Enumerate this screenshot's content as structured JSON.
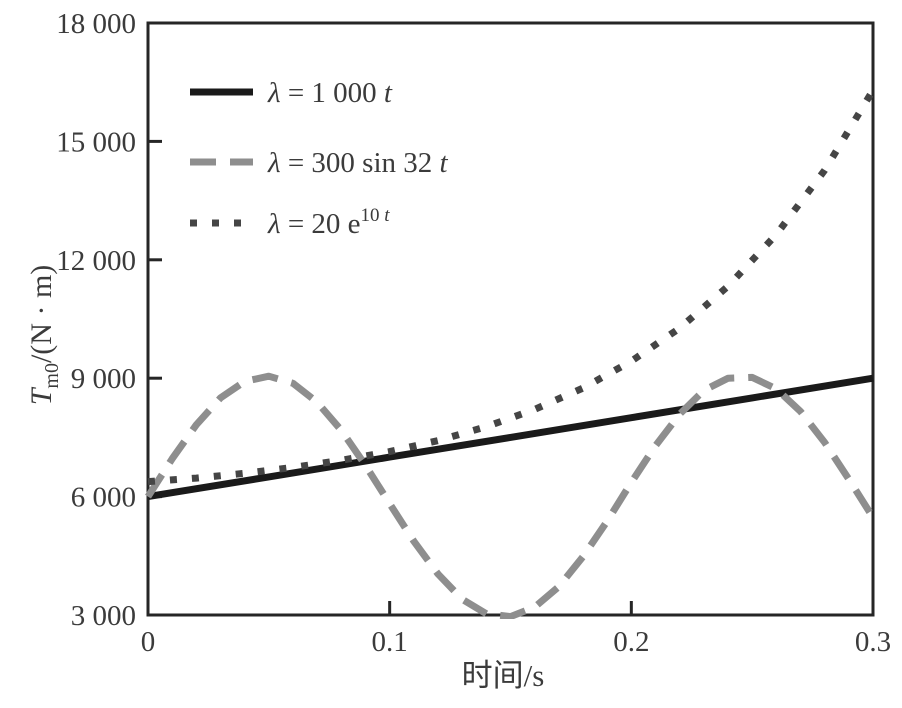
{
  "figure": {
    "background": "#ffffff",
    "axis_color": "#262626",
    "text_color": "#3b3b3b"
  },
  "y_axis": {
    "label": {
      "main": "T",
      "sub": "m0",
      "rest": "/(N · m)"
    },
    "ticks": [
      3000,
      6000,
      9000,
      12000,
      15000,
      18000
    ],
    "tick_labels": [
      "3 000",
      "6 000",
      "9 000",
      "12 000",
      "15 000",
      "18 000"
    ],
    "inner_tick_values": [
      6000,
      9000,
      12000,
      15000
    ]
  },
  "x_axis": {
    "label": "时间/s",
    "ticks": [
      0,
      0.1,
      0.2,
      0.3
    ],
    "tick_labels": [
      "0",
      "0.1",
      "0.2",
      "0.3"
    ],
    "inner_tick_values": [
      0.1,
      0.2
    ]
  },
  "legend": {
    "items": [
      {
        "parts": [
          {
            "text": "λ",
            "italic": true
          },
          {
            "text": " = 1 000 ",
            "italic": false
          },
          {
            "text": "t",
            "italic": true
          }
        ]
      },
      {
        "parts": [
          {
            "text": "λ",
            "italic": true
          },
          {
            "text": " = 300 sin 32 ",
            "italic": false
          },
          {
            "text": "t",
            "italic": true
          }
        ]
      },
      {
        "parts": [
          {
            "text": "λ",
            "italic": true
          },
          {
            "text": " = 20 e",
            "italic": false
          },
          {
            "text": "10 ",
            "italic": false,
            "sup": true
          },
          {
            "text": "t",
            "italic": true,
            "sup": true
          }
        ]
      }
    ]
  },
  "chart_data": {
    "type": "line",
    "title": "",
    "xlabel": "时间/s",
    "ylabel": "T_m0/(N · m)",
    "xlim": [
      0,
      0.3
    ],
    "ylim": [
      3000,
      18000
    ],
    "x_ticks": [
      0,
      0.1,
      0.2,
      0.3
    ],
    "y_ticks": [
      3000,
      6000,
      9000,
      12000,
      15000,
      18000
    ],
    "grid": false,
    "legend_position": "upper-left-inside",
    "series": [
      {
        "key": "linear",
        "name": "λ = 1 000 t",
        "style": "solid",
        "color": "#1a1a1a",
        "width": 7,
        "x": [
          0,
          0.05,
          0.1,
          0.15,
          0.2,
          0.25,
          0.3
        ],
        "y": [
          6000,
          6500,
          7000,
          7500,
          8000,
          8500,
          9000
        ]
      },
      {
        "key": "sine",
        "name": "λ = 300 sin 32 t",
        "style": "dashed",
        "color": "#8e8e8e",
        "width": 7,
        "x": [
          0,
          0.01,
          0.02,
          0.03,
          0.04,
          0.05,
          0.06,
          0.07,
          0.08,
          0.09,
          0.1,
          0.11,
          0.12,
          0.13,
          0.14,
          0.15,
          0.16,
          0.17,
          0.18,
          0.19,
          0.2,
          0.21,
          0.22,
          0.23,
          0.24,
          0.25,
          0.26,
          0.27,
          0.28,
          0.29,
          0.3
        ],
        "y": [
          6000,
          6960,
          7820,
          8500,
          8920,
          9050,
          8870,
          8390,
          7680,
          6790,
          5820,
          4870,
          4040,
          3400,
          3030,
          2960,
          3200,
          3720,
          4480,
          5380,
          6360,
          7290,
          8090,
          8690,
          9000,
          9020,
          8730,
          8160,
          7370,
          6440,
          5470
        ]
      },
      {
        "key": "exp",
        "name": "λ = 20 e^{10 t}",
        "style": "dotted",
        "color": "#454545",
        "width": 7,
        "x": [
          0,
          0.02,
          0.04,
          0.06,
          0.08,
          0.1,
          0.12,
          0.14,
          0.16,
          0.18,
          0.2,
          0.22,
          0.24,
          0.26,
          0.28,
          0.3
        ],
        "y": [
          6380,
          6470,
          6590,
          6740,
          6920,
          7140,
          7420,
          7770,
          8210,
          8750,
          9430,
          10270,
          11330,
          12640,
          14270,
          16300
        ]
      }
    ]
  }
}
